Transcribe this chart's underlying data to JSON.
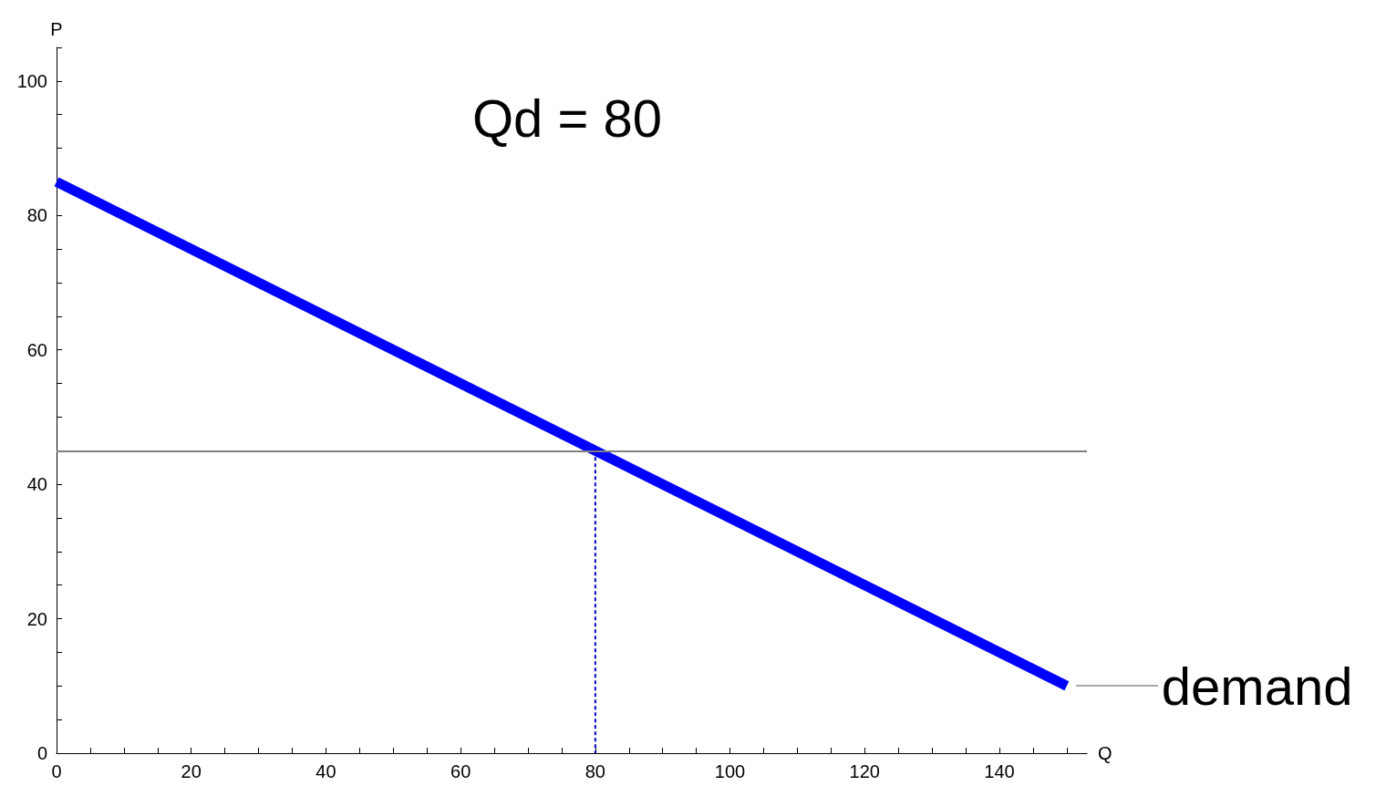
{
  "chart_data": {
    "type": "line",
    "title": "Qd = 80",
    "xlabel": "Q",
    "ylabel": "P",
    "series": [
      {
        "name": "demand",
        "color": "#0000ff",
        "x": [
          0,
          150
        ],
        "values": [
          85,
          10
        ]
      },
      {
        "color": "#0000cc",
        "x": [
          80,
          80
        ],
        "values": [
          45,
          0
        ],
        "line_style": "dashed"
      }
    ],
    "xlim": [
      0,
      153
    ],
    "ylim": [
      0,
      105
    ],
    "xticks": [
      0,
      {
        "value": 5,
        "label": null
      },
      {
        "value": 10,
        "label": null
      },
      {
        "value": 15,
        "label": null
      },
      20,
      {
        "value": 25,
        "label": null
      },
      {
        "value": 30,
        "label": null
      },
      {
        "value": 35,
        "label": null
      },
      40,
      {
        "value": 45,
        "label": null
      },
      {
        "value": 50,
        "label": null
      },
      {
        "value": 55,
        "label": null
      },
      60,
      {
        "value": 65,
        "label": null
      },
      {
        "value": 70,
        "label": null
      },
      {
        "value": 75,
        "label": null
      },
      80,
      {
        "value": 85,
        "label": null
      },
      {
        "value": 90,
        "label": null
      },
      {
        "value": 95,
        "label": null
      },
      100,
      {
        "value": 105,
        "label": null
      },
      {
        "value": 110,
        "label": null
      },
      {
        "value": 115,
        "label": null
      },
      120,
      {
        "value": 125,
        "label": null
      },
      {
        "value": 130,
        "label": null
      },
      {
        "value": 135,
        "label": null
      },
      140,
      {
        "value": 145,
        "label": null
      },
      {
        "value": 150,
        "label": null
      }
    ],
    "yticks": [
      0,
      {
        "value": 5,
        "label": null
      },
      {
        "value": 10,
        "label": null
      },
      {
        "value": 15,
        "label": null
      },
      20,
      {
        "value": 25,
        "label": null
      },
      {
        "value": 30,
        "label": null
      },
      {
        "value": 35,
        "label": null
      },
      40,
      {
        "value": 45,
        "label": null
      },
      {
        "value": 50,
        "label": null
      },
      {
        "value": 55,
        "label": null
      },
      60,
      {
        "value": 65,
        "label": null
      },
      {
        "value": 70,
        "label": null
      },
      {
        "value": 75,
        "label": null
      },
      80,
      {
        "value": 85,
        "label": null
      },
      {
        "value": 90,
        "label": null
      },
      {
        "value": 95,
        "label": null
      },
      100,
      {
        "value": 105,
        "label": null
      }
    ],
    "ref_lines": [
      {
        "axis": "y",
        "value": 45,
        "color": "#808080"
      }
    ],
    "grid": false,
    "legend": false,
    "marker": "none",
    "line_style": "solid"
  }
}
